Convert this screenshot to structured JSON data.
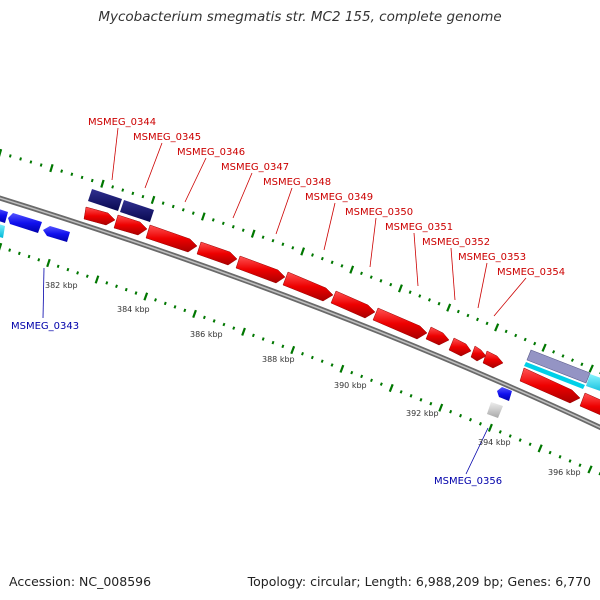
{
  "title": "Mycobacterium smegmatis str. MC2 155, complete genome",
  "footer": {
    "accession": "Accession: NC_008596",
    "topology": "Topology: circular; Length: 6,988,209 bp; Genes: 6,770"
  },
  "colors": {
    "forward_gene": "#ee0000",
    "reverse_gene": "#1010ee",
    "gene_label_forward": "#cc0000",
    "gene_label_reverse": "#0000aa",
    "backbone": "#808080",
    "tick_marks": "#007700",
    "dark_navy": "#101070",
    "cyan": "#00d8ee",
    "gray_feature": "#c8c8c8",
    "lavender": "#9090c0"
  },
  "forward_genes": [
    "MSMEG_0344",
    "MSMEG_0345",
    "MSMEG_0346",
    "MSMEG_0347",
    "MSMEG_0348",
    "MSMEG_0349",
    "MSMEG_0350",
    "MSMEG_0351",
    "MSMEG_0352",
    "MSMEG_0353",
    "MSMEG_0354"
  ],
  "reverse_genes": [
    "MSMEG_0343",
    "MSMEG_0356"
  ],
  "scale_ticks": [
    "382 kbp",
    "384 kbp",
    "386 kbp",
    "388 kbp",
    "390 kbp",
    "392 kbp",
    "394 kbp",
    "396 kbp"
  ]
}
